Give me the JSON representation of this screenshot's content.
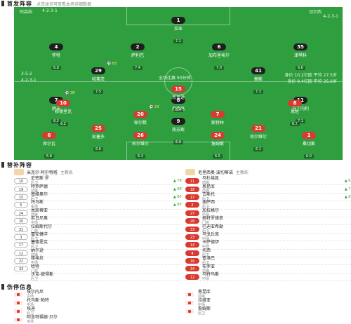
{
  "lineup": {
    "title": "首发阵容",
    "subtitle": "点击球员可查看本场详细数据"
  },
  "pitch": {
    "home_label": "阿森纳",
    "home_formation": "4-2-3-1",
    "away_label": "切尔西",
    "away_formation": "4-2-3-1",
    "home_avg": "平均年龄 26.5岁 · 总身价 9.6亿",
    "away_avg": "平均年龄 26.3岁 · 总身价 10.3亿",
    "mid_left_a": "3-5-2",
    "mid_left_b": "4-2-3-1",
    "mid_center": "全场比赛 90分钟",
    "mid_right_a": "身价 10.2亿欧  平均 27.5岁",
    "mid_right_b": "身价 9.4亿欧  平均 25.6岁"
  },
  "home_players": [
    {
      "num": "1",
      "name": "拉亚",
      "rating": "7.1"
    },
    {
      "num": "4",
      "name": "怀特",
      "rating": "6.8"
    },
    {
      "num": "2",
      "name": "萨利巴",
      "rating": "7.4"
    },
    {
      "num": "6",
      "name": "加布里埃尔",
      "rating": "7.0"
    },
    {
      "num": "35",
      "name": "津琴科",
      "rating": "6.6"
    },
    {
      "num": "29",
      "name": "哈弗茨",
      "rating": "7.5",
      "ev": "⚽ 65'"
    },
    {
      "num": "41",
      "name": "赖斯",
      "rating": "7.3"
    },
    {
      "num": "7",
      "name": "萨卡",
      "rating": "8.2",
      "ev": "⚽ 38'"
    },
    {
      "num": "8",
      "name": "厄德高",
      "rating": "7.9"
    },
    {
      "num": "11",
      "name": "马丁内利",
      "rating": "7.1"
    },
    {
      "num": "9",
      "name": "热苏斯",
      "rating": "6.9"
    }
  ],
  "away_players": [
    {
      "num": "15",
      "name": "杰克逊",
      "rating": "6.4"
    },
    {
      "num": "10",
      "name": "穆德里克",
      "rating": "6.2"
    },
    {
      "num": "20",
      "name": "帕尔默",
      "rating": "7.0",
      "ev": "⚽ 23'"
    },
    {
      "num": "7",
      "name": "斯特林",
      "rating": "6.5"
    },
    {
      "num": "8",
      "name": "恩佐",
      "rating": "6.7"
    },
    {
      "num": "25",
      "name": "凯塞多",
      "rating": "6.6"
    },
    {
      "num": "21",
      "name": "奇尔维尔",
      "rating": "6.1"
    },
    {
      "num": "6",
      "name": "席尔瓦",
      "rating": "6.8"
    },
    {
      "num": "26",
      "name": "科尔维尔",
      "rating": "6.3"
    },
    {
      "num": "24",
      "name": "詹姆斯",
      "rating": "6.5"
    },
    {
      "num": "1",
      "name": "桑切斯",
      "rating": "6.0"
    }
  ],
  "subs": {
    "title": "替补阵容",
    "home_coach": {
      "name": "米克尔·阿尔特塔",
      "role": "主教练"
    },
    "away_coach": {
      "name": "毛里西奥·波切蒂诺",
      "role": "主教练"
    },
    "home": [
      {
        "num": "10",
        "name": "史密斯·罗",
        "pos": "后卫",
        "in": "▲ 76'"
      },
      {
        "num": "19",
        "name": "特罗萨德",
        "pos": "前锋",
        "in": "▲ 68'"
      },
      {
        "num": "15",
        "name": "基维奥尔",
        "pos": "后卫",
        "in": "▲ 85'"
      },
      {
        "num": "5",
        "name": "托马斯",
        "pos": "中场",
        "in": "▲ 85'"
      },
      {
        "num": "24",
        "name": "恩凯蒂亚",
        "pos": "前锋",
        "in": ""
      },
      {
        "num": "20",
        "name": "若日尼奥",
        "pos": "中场",
        "in": ""
      },
      {
        "num": "31",
        "name": "拉姆斯代尔",
        "pos": "门将",
        "in": ""
      },
      {
        "num": "3",
        "name": "冨安健洋",
        "pos": "后卫",
        "in": ""
      },
      {
        "num": "17",
        "name": "塞德里克",
        "pos": "后卫",
        "in": ""
      },
      {
        "num": "12",
        "name": "纳尔逊",
        "pos": "前锋",
        "in": ""
      },
      {
        "num": "22",
        "name": "维埃拉",
        "pos": "中场",
        "in": ""
      },
      {
        "num": "33",
        "name": "哈特",
        "pos": "门将",
        "in": ""
      },
      {
        "num": "",
        "name": "沃克-彼得斯",
        "pos": "后卫",
        "in": ""
      }
    ],
    "away": [
      {
        "num": "11",
        "name": "马杜埃凯",
        "pos": "前锋",
        "in": "▲ 63'"
      },
      {
        "num": "18",
        "name": "恩昆库",
        "pos": "前锋",
        "in": "▲ 71'"
      },
      {
        "num": "17",
        "name": "古斯托",
        "pos": "后卫",
        "in": "▲ 80'"
      },
      {
        "num": "2",
        "name": "迪萨西",
        "pos": "后卫",
        "in": ""
      },
      {
        "num": "27",
        "name": "加拉格尔",
        "pos": "中场",
        "in": ""
      },
      {
        "num": "28",
        "name": "佩特罗维奇",
        "pos": "门将",
        "in": ""
      },
      {
        "num": "33",
        "name": "巴迪亚希勒",
        "pos": "后卫",
        "in": ""
      },
      {
        "num": "23",
        "name": "乌戈丘库",
        "pos": "中场",
        "in": ""
      },
      {
        "num": "14",
        "name": "卡萨德伊",
        "pos": "中场",
        "in": ""
      },
      {
        "num": "4",
        "name": "托西",
        "pos": "后卫",
        "in": ""
      },
      {
        "num": "16",
        "name": "查洛巴",
        "pos": "后卫",
        "in": ""
      },
      {
        "num": "34",
        "name": "布罗亚",
        "pos": "前锋",
        "in": ""
      },
      {
        "num": "12",
        "name": "马特乌斯",
        "pos": "中场",
        "in": ""
      }
    ]
  },
  "injuries": {
    "title": "伤停信息",
    "home": [
      {
        "name": "埃尔内尼",
        "pos": "中场"
      },
      {
        "name": "托马斯·帕特",
        "pos": "中场"
      },
      {
        "name": "埃迪",
        "pos": "后卫"
      },
      {
        "name": "阿吉特福德·贝尔",
        "pos": "中场"
      }
    ],
    "away": [
      {
        "name": "恩昆库",
        "pos": "前锋"
      },
      {
        "name": "拉维亚",
        "pos": "中场"
      },
      {
        "name": "詹姆斯",
        "pos": "后卫"
      }
    ]
  }
}
